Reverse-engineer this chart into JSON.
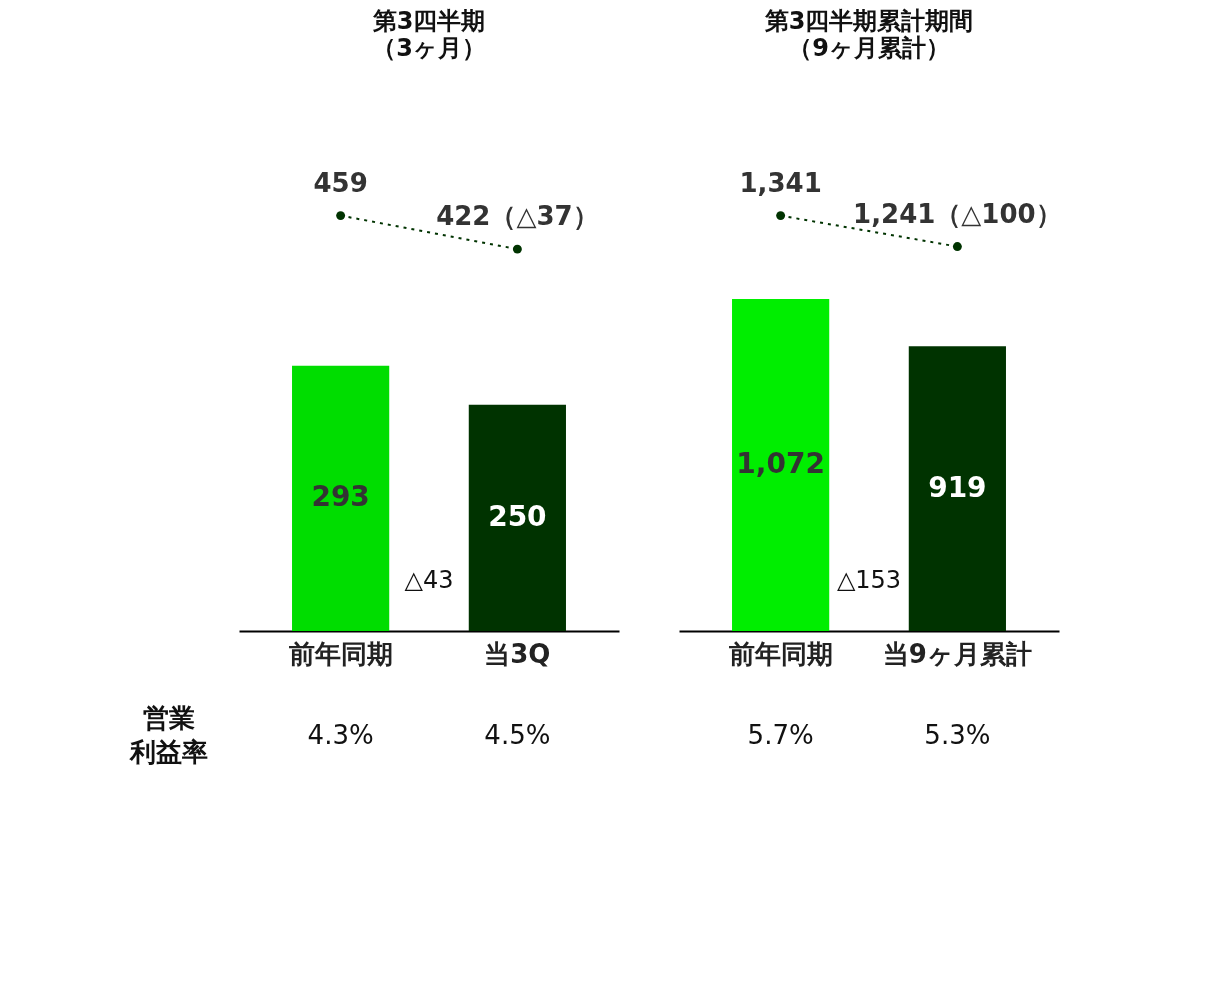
{
  "chart_data": [
    {
      "type": "bar",
      "title": "第3四半期",
      "subtitle": "（3ヶ月）",
      "categories": [
        "前年同期",
        "当3Q"
      ],
      "series": [
        {
          "colors": [
            "#00dd00",
            "#003300"
          ],
          "values": [
            293,
            250
          ],
          "value_labels": [
            "293",
            "250"
          ]
        },
        {
          "type": "line",
          "color": "#003300",
          "marker": "circle",
          "line_style": "dotted",
          "values": [
            459,
            422
          ],
          "value_labels": [
            "459",
            "422（△37）"
          ]
        }
      ],
      "annotations": [
        "△43",
        "営業",
        "利益率",
        "4.3%",
        "4.5%"
      ]
    },
    {
      "type": "bar",
      "title": "第3四半期累計期間",
      "subtitle": "（9ヶ月累計）",
      "categories": [
        "前年同期",
        "当9ヶ月累計"
      ],
      "series": [
        {
          "colors": [
            "#00ee00",
            "#003300"
          ],
          "values": [
            1072,
            919
          ],
          "value_labels": [
            "1,072",
            "919"
          ]
        },
        {
          "type": "line",
          "color": "#003300",
          "marker": "circle",
          "line_style": "dotted",
          "values": [
            1341,
            1241
          ],
          "value_labels": [
            "1,341",
            "1,241（△100）"
          ]
        }
      ],
      "annotations": [
        "△153",
        "5.7%",
        "5.3%"
      ]
    }
  ]
}
